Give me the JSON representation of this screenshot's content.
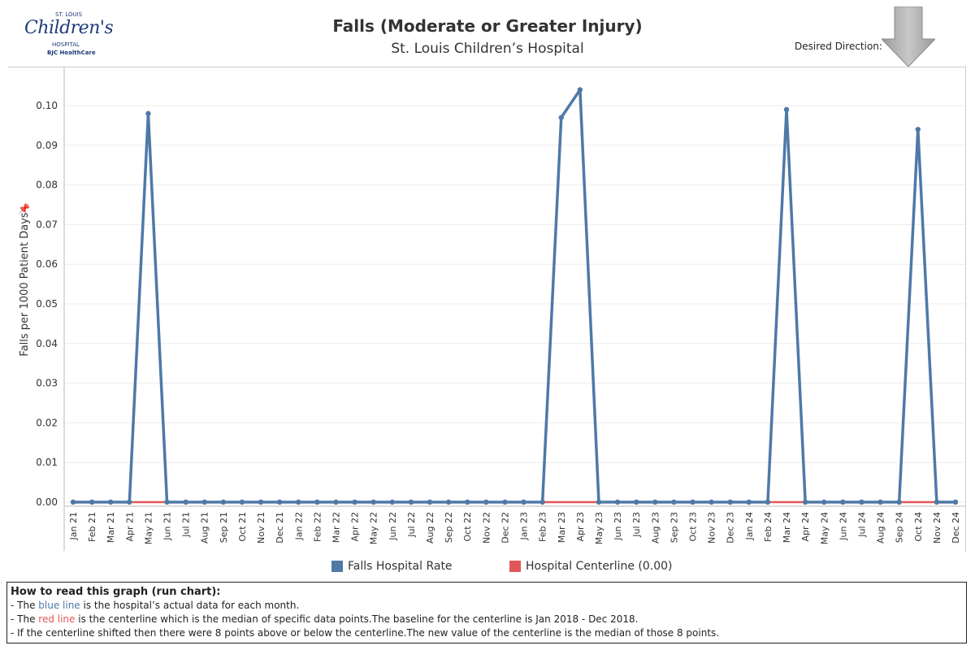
{
  "logo": {
    "top": "ST. LOUIS",
    "main": "Children's",
    "sub": "HOSPITAL",
    "bjc": "BJC HealthCare"
  },
  "header": {
    "title": "Falls (Moderate or Greater Injury)",
    "subtitle": "St. Louis Children’s Hospital",
    "direction_label": "Desired Direction:",
    "direction_icon": "down-arrow-icon"
  },
  "legend": [
    {
      "label": "Falls Hospital Rate",
      "color": "#4e79a7"
    },
    {
      "label": "Hospital Centerline (0.00)",
      "color": "#e15759"
    }
  ],
  "howto": {
    "heading": "How to read this graph (run chart):",
    "l1_pre": "- The ",
    "l1_key": "blue line",
    "l1_post": " is the hospital’s actual data for each month.",
    "l2_pre": "- The ",
    "l2_key": "red line",
    "l2_post": " is the centerline which is the median of specific data points.The baseline for the centerline is Jan 2018 - Dec 2018.",
    "l3": "- If the centerline shifted then there were 8 points above or below the centerline.The new value of the centerline is the median of those 8 points."
  },
  "chart_data": {
    "type": "line",
    "ylabel": "Falls per 1000 Patient Days",
    "ylim": [
      0,
      0.105
    ],
    "yticks": [
      0.0,
      0.01,
      0.02,
      0.03,
      0.04,
      0.05,
      0.06,
      0.07,
      0.08,
      0.09,
      0.1
    ],
    "grid": true,
    "legend_position": "bottom",
    "categories": [
      "Jan 21",
      "Feb 21",
      "Mar 21",
      "Apr 21",
      "May 21",
      "Jun 21",
      "Jul 21",
      "Aug 21",
      "Sep 21",
      "Oct 21",
      "Nov 21",
      "Dec 21",
      "Jan 22",
      "Feb 22",
      "Mar 22",
      "Apr 22",
      "May 22",
      "Jun 22",
      "Jul 22",
      "Aug 22",
      "Sep 22",
      "Oct 22",
      "Nov 22",
      "Dec 22",
      "Jan 23",
      "Feb 23",
      "Mar 23",
      "Apr 23",
      "May 23",
      "Jun 23",
      "Jul 23",
      "Aug 23",
      "Sep 23",
      "Oct 23",
      "Nov 23",
      "Dec 23",
      "Jan 24",
      "Feb 24",
      "Mar 24",
      "Apr 24",
      "May 24",
      "Jun 24",
      "Jul 24",
      "Aug 24",
      "Sep 24",
      "Oct 24",
      "Nov 24",
      "Dec 24"
    ],
    "series": [
      {
        "name": "Falls Hospital Rate",
        "color": "#4e79a7",
        "values": [
          0,
          0,
          0,
          0,
          0.098,
          0,
          0,
          0,
          0,
          0,
          0,
          0,
          0,
          0,
          0,
          0,
          0,
          0,
          0,
          0,
          0,
          0,
          0,
          0,
          0,
          0,
          0.097,
          0.104,
          0,
          0,
          0,
          0,
          0,
          0,
          0,
          0,
          0,
          0,
          0.099,
          0,
          0,
          0,
          0,
          0,
          0,
          0.094,
          0,
          0
        ]
      },
      {
        "name": "Hospital Centerline (0.00)",
        "color": "#e15759",
        "values": [
          0,
          0,
          0,
          0,
          0,
          0,
          0,
          0,
          0,
          0,
          0,
          0,
          0,
          0,
          0,
          0,
          0,
          0,
          0,
          0,
          0,
          0,
          0,
          0,
          0,
          0,
          0,
          0,
          0,
          0,
          0,
          0,
          0,
          0,
          0,
          0,
          0,
          0,
          0,
          0,
          0,
          0,
          0,
          0,
          0,
          0,
          0,
          0
        ]
      }
    ]
  }
}
